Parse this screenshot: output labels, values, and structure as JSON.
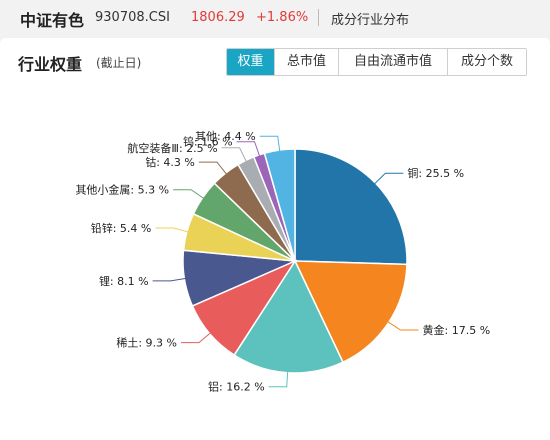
{
  "header": {
    "index_name": "中证有色",
    "index_code": "930708.CSI",
    "price": "1806.29",
    "change": "+1.86%",
    "section_title": "成分行业分布"
  },
  "panel": {
    "title": "行业权重",
    "subtitle": "(截止日)",
    "tabs": [
      {
        "label": "权重",
        "active": true
      },
      {
        "label": "总市值",
        "active": false
      },
      {
        "label": "自由流通市值",
        "active": false
      },
      {
        "label": "成分个数",
        "active": false
      }
    ]
  },
  "colors": {
    "accent": "#1aa5c4",
    "up": "#e23a3a"
  },
  "chart_data": {
    "type": "pie",
    "unit": "%",
    "slices": [
      {
        "name": "铜",
        "value": 25.5,
        "label": "铜: 25.5 %",
        "color": "#2275a8"
      },
      {
        "name": "黄金",
        "value": 17.5,
        "label": "黄金: 17.5 %",
        "color": "#f5851f"
      },
      {
        "name": "铝",
        "value": 16.2,
        "label": "铝: 16.2 %",
        "color": "#5dc2be"
      },
      {
        "name": "稀土",
        "value": 9.3,
        "label": "稀土: 9.3 %",
        "color": "#e85c5c"
      },
      {
        "name": "锂",
        "value": 8.1,
        "label": "锂: 8.1 %",
        "color": "#4a5890"
      },
      {
        "name": "铅锌",
        "value": 5.4,
        "label": "铅锌: 5.4 %",
        "color": "#ead257"
      },
      {
        "name": "其他小金属",
        "value": 5.3,
        "label": "其他小金属: 5.3 %",
        "color": "#63a66b"
      },
      {
        "name": "钴",
        "value": 4.3,
        "label": "钴: 4.3 %",
        "color": "#8e6b4f"
      },
      {
        "name": "航空装备Ⅲ",
        "value": 2.5,
        "label": "航空装备Ⅲ: 2.5 %",
        "color": "#a9adb2"
      },
      {
        "name": "钨",
        "value": 1.6,
        "label": "钨: 1.6 %",
        "color": "#9b65b8"
      },
      {
        "name": "其他",
        "value": 4.4,
        "label": "其他: 4.4 %",
        "color": "#52b4e2"
      }
    ]
  }
}
